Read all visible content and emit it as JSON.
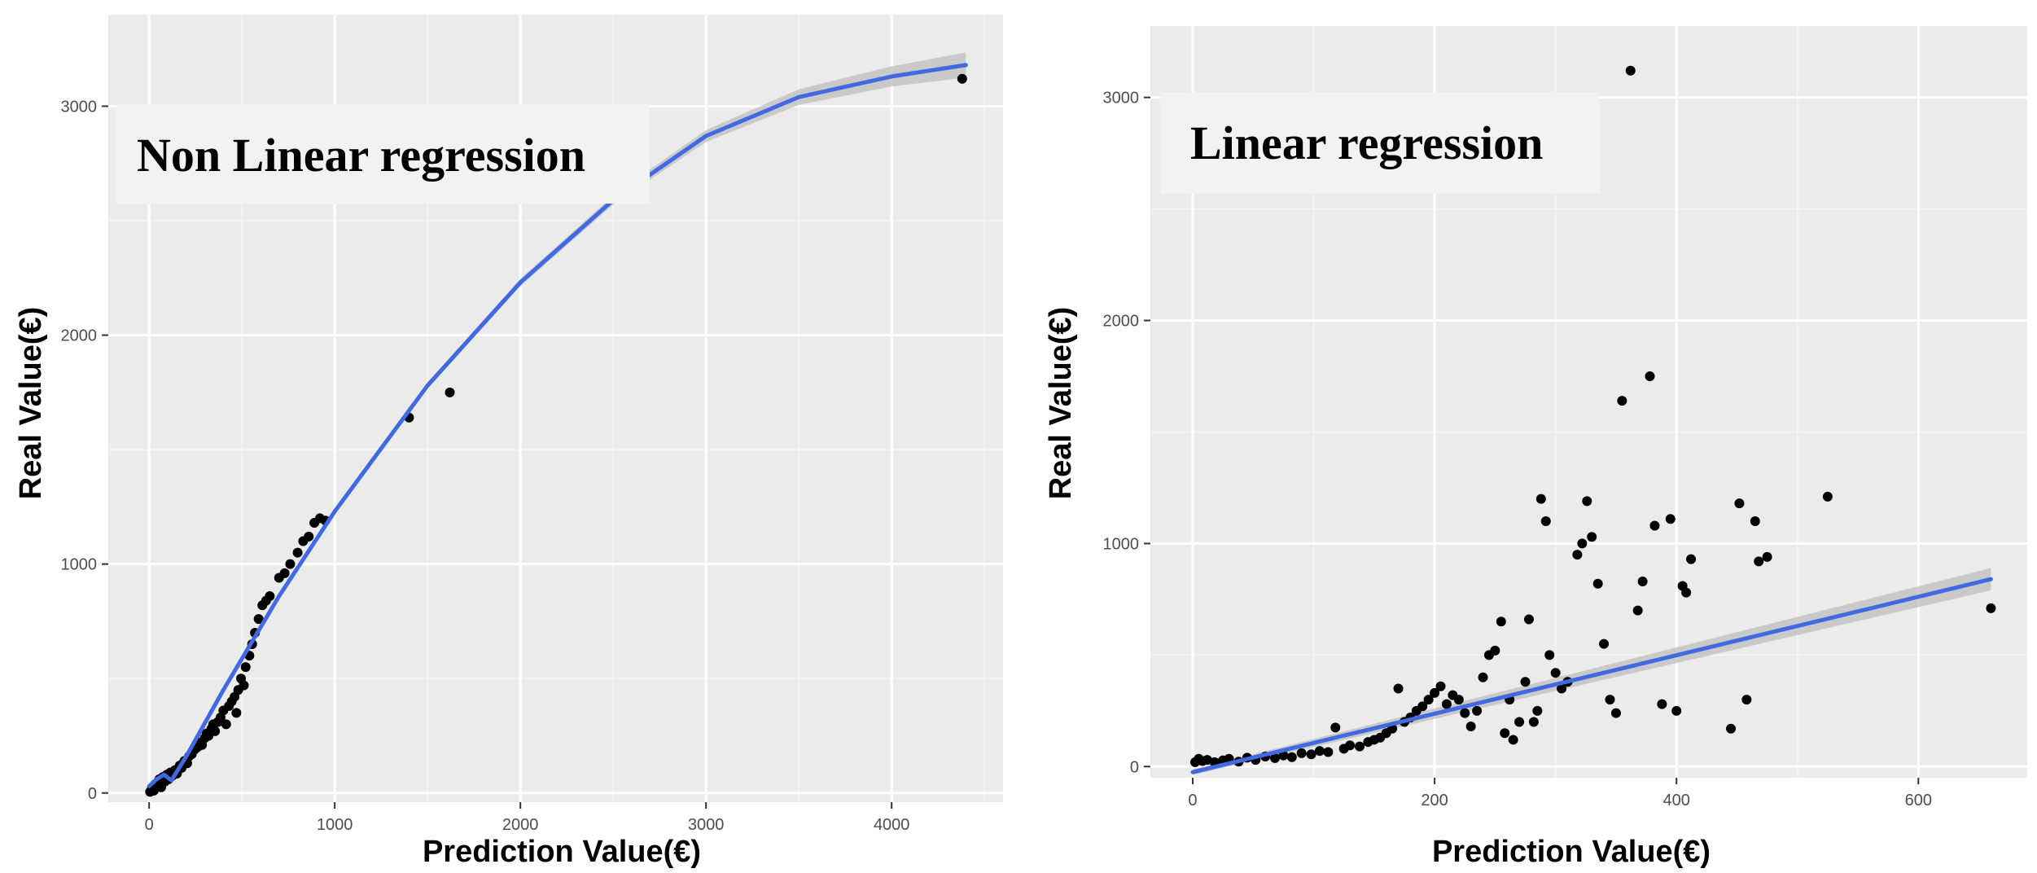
{
  "colors": {
    "panel_bg": "#ebebeb",
    "grid_major": "#ffffff",
    "fit_line": "#4169e1",
    "confidence_band": "#bdbdbd",
    "points": "#000000",
    "annotation_bg": "#f2f2f2"
  },
  "chart_data": [
    {
      "type": "scatter",
      "annotation": "Non Linear regression",
      "xlabel": "Prediction Value(€)",
      "ylabel": "Real Value(€)",
      "xlim": [
        -220,
        4600
      ],
      "ylim": [
        -40,
        3400
      ],
      "xticks": [
        0,
        1000,
        2000,
        3000,
        4000
      ],
      "yticks": [
        0,
        1000,
        2000,
        3000
      ],
      "grid": true,
      "legend": "none",
      "points": [
        [
          5,
          5
        ],
        [
          15,
          20
        ],
        [
          25,
          10
        ],
        [
          35,
          40
        ],
        [
          45,
          30
        ],
        [
          55,
          60
        ],
        [
          65,
          25
        ],
        [
          75,
          70
        ],
        [
          85,
          50
        ],
        [
          95,
          80
        ],
        [
          105,
          60
        ],
        [
          115,
          90
        ],
        [
          125,
          75
        ],
        [
          140,
          100
        ],
        [
          150,
          85
        ],
        [
          165,
          120
        ],
        [
          175,
          110
        ],
        [
          190,
          140
        ],
        [
          205,
          130
        ],
        [
          215,
          160
        ],
        [
          230,
          170
        ],
        [
          245,
          190
        ],
        [
          260,
          200
        ],
        [
          275,
          220
        ],
        [
          285,
          210
        ],
        [
          300,
          240
        ],
        [
          310,
          260
        ],
        [
          320,
          250
        ],
        [
          335,
          280
        ],
        [
          345,
          300
        ],
        [
          355,
          270
        ],
        [
          370,
          310
        ],
        [
          385,
          330
        ],
        [
          400,
          360
        ],
        [
          415,
          300
        ],
        [
          430,
          380
        ],
        [
          445,
          400
        ],
        [
          460,
          420
        ],
        [
          470,
          350
        ],
        [
          480,
          450
        ],
        [
          495,
          500
        ],
        [
          510,
          470
        ],
        [
          520,
          550
        ],
        [
          540,
          600
        ],
        [
          555,
          650
        ],
        [
          570,
          700
        ],
        [
          590,
          760
        ],
        [
          610,
          820
        ],
        [
          630,
          840
        ],
        [
          650,
          860
        ],
        [
          700,
          940
        ],
        [
          730,
          960
        ],
        [
          760,
          1000
        ],
        [
          800,
          1050
        ],
        [
          830,
          1100
        ],
        [
          860,
          1120
        ],
        [
          890,
          1180
        ],
        [
          920,
          1200
        ],
        [
          950,
          1190
        ],
        [
          1400,
          1640
        ],
        [
          1620,
          1750
        ],
        [
          4380,
          3120
        ]
      ],
      "fit": {
        "x": [
          0,
          40,
          80,
          120,
          200,
          400,
          700,
          1000,
          1500,
          2000,
          2500,
          3000,
          3500,
          4000,
          4400
        ],
        "y": [
          30,
          60,
          80,
          55,
          160,
          450,
          860,
          1230,
          1780,
          2230,
          2590,
          2870,
          3040,
          3130,
          3180
        ]
      },
      "band_halfwidth": [
        3,
        4,
        4,
        4,
        6,
        8,
        10,
        12,
        14,
        16,
        20,
        26,
        34,
        44,
        55
      ]
    },
    {
      "type": "scatter",
      "annotation": "Linear regression",
      "xlabel": "Prediction Value(€)",
      "ylabel": "Real Value(€)",
      "xlim": [
        -35,
        690
      ],
      "ylim": [
        -50,
        3320
      ],
      "xticks": [
        0,
        200,
        400,
        600
      ],
      "yticks": [
        0,
        1000,
        2000,
        3000
      ],
      "grid": true,
      "legend": "none",
      "points": [
        [
          2,
          20
        ],
        [
          5,
          35
        ],
        [
          8,
          25
        ],
        [
          12,
          30
        ],
        [
          18,
          20
        ],
        [
          25,
          28
        ],
        [
          30,
          35
        ],
        [
          38,
          22
        ],
        [
          45,
          40
        ],
        [
          52,
          30
        ],
        [
          60,
          45
        ],
        [
          68,
          38
        ],
        [
          75,
          50
        ],
        [
          82,
          42
        ],
        [
          90,
          60
        ],
        [
          98,
          55
        ],
        [
          105,
          70
        ],
        [
          112,
          65
        ],
        [
          118,
          175
        ],
        [
          125,
          80
        ],
        [
          130,
          95
        ],
        [
          138,
          90
        ],
        [
          145,
          110
        ],
        [
          150,
          120
        ],
        [
          155,
          130
        ],
        [
          160,
          150
        ],
        [
          165,
          170
        ],
        [
          170,
          350
        ],
        [
          175,
          200
        ],
        [
          180,
          220
        ],
        [
          185,
          250
        ],
        [
          190,
          270
        ],
        [
          195,
          300
        ],
        [
          200,
          330
        ],
        [
          205,
          360
        ],
        [
          210,
          280
        ],
        [
          215,
          320
        ],
        [
          220,
          300
        ],
        [
          225,
          240
        ],
        [
          230,
          180
        ],
        [
          235,
          250
        ],
        [
          240,
          400
        ],
        [
          245,
          500
        ],
        [
          250,
          520
        ],
        [
          255,
          650
        ],
        [
          258,
          150
        ],
        [
          262,
          300
        ],
        [
          265,
          120
        ],
        [
          270,
          200
        ],
        [
          275,
          380
        ],
        [
          278,
          660
        ],
        [
          282,
          200
        ],
        [
          285,
          250
        ],
        [
          288,
          1200
        ],
        [
          292,
          1100
        ],
        [
          295,
          500
        ],
        [
          300,
          420
        ],
        [
          305,
          350
        ],
        [
          310,
          380
        ],
        [
          318,
          950
        ],
        [
          322,
          1000
        ],
        [
          326,
          1190
        ],
        [
          330,
          1030
        ],
        [
          335,
          820
        ],
        [
          340,
          550
        ],
        [
          345,
          300
        ],
        [
          350,
          240
        ],
        [
          355,
          1640
        ],
        [
          362,
          3120
        ],
        [
          368,
          700
        ],
        [
          372,
          830
        ],
        [
          378,
          1750
        ],
        [
          382,
          1080
        ],
        [
          388,
          280
        ],
        [
          395,
          1110
        ],
        [
          400,
          250
        ],
        [
          405,
          810
        ],
        [
          408,
          780
        ],
        [
          412,
          930
        ],
        [
          445,
          170
        ],
        [
          452,
          1180
        ],
        [
          458,
          300
        ],
        [
          465,
          1100
        ],
        [
          468,
          920
        ],
        [
          475,
          940
        ],
        [
          525,
          1210
        ],
        [
          660,
          710
        ]
      ],
      "fit": {
        "x": [
          0,
          660
        ],
        "y": [
          -25,
          840
        ]
      },
      "band_halfwidth": [
        12,
        50
      ]
    }
  ]
}
